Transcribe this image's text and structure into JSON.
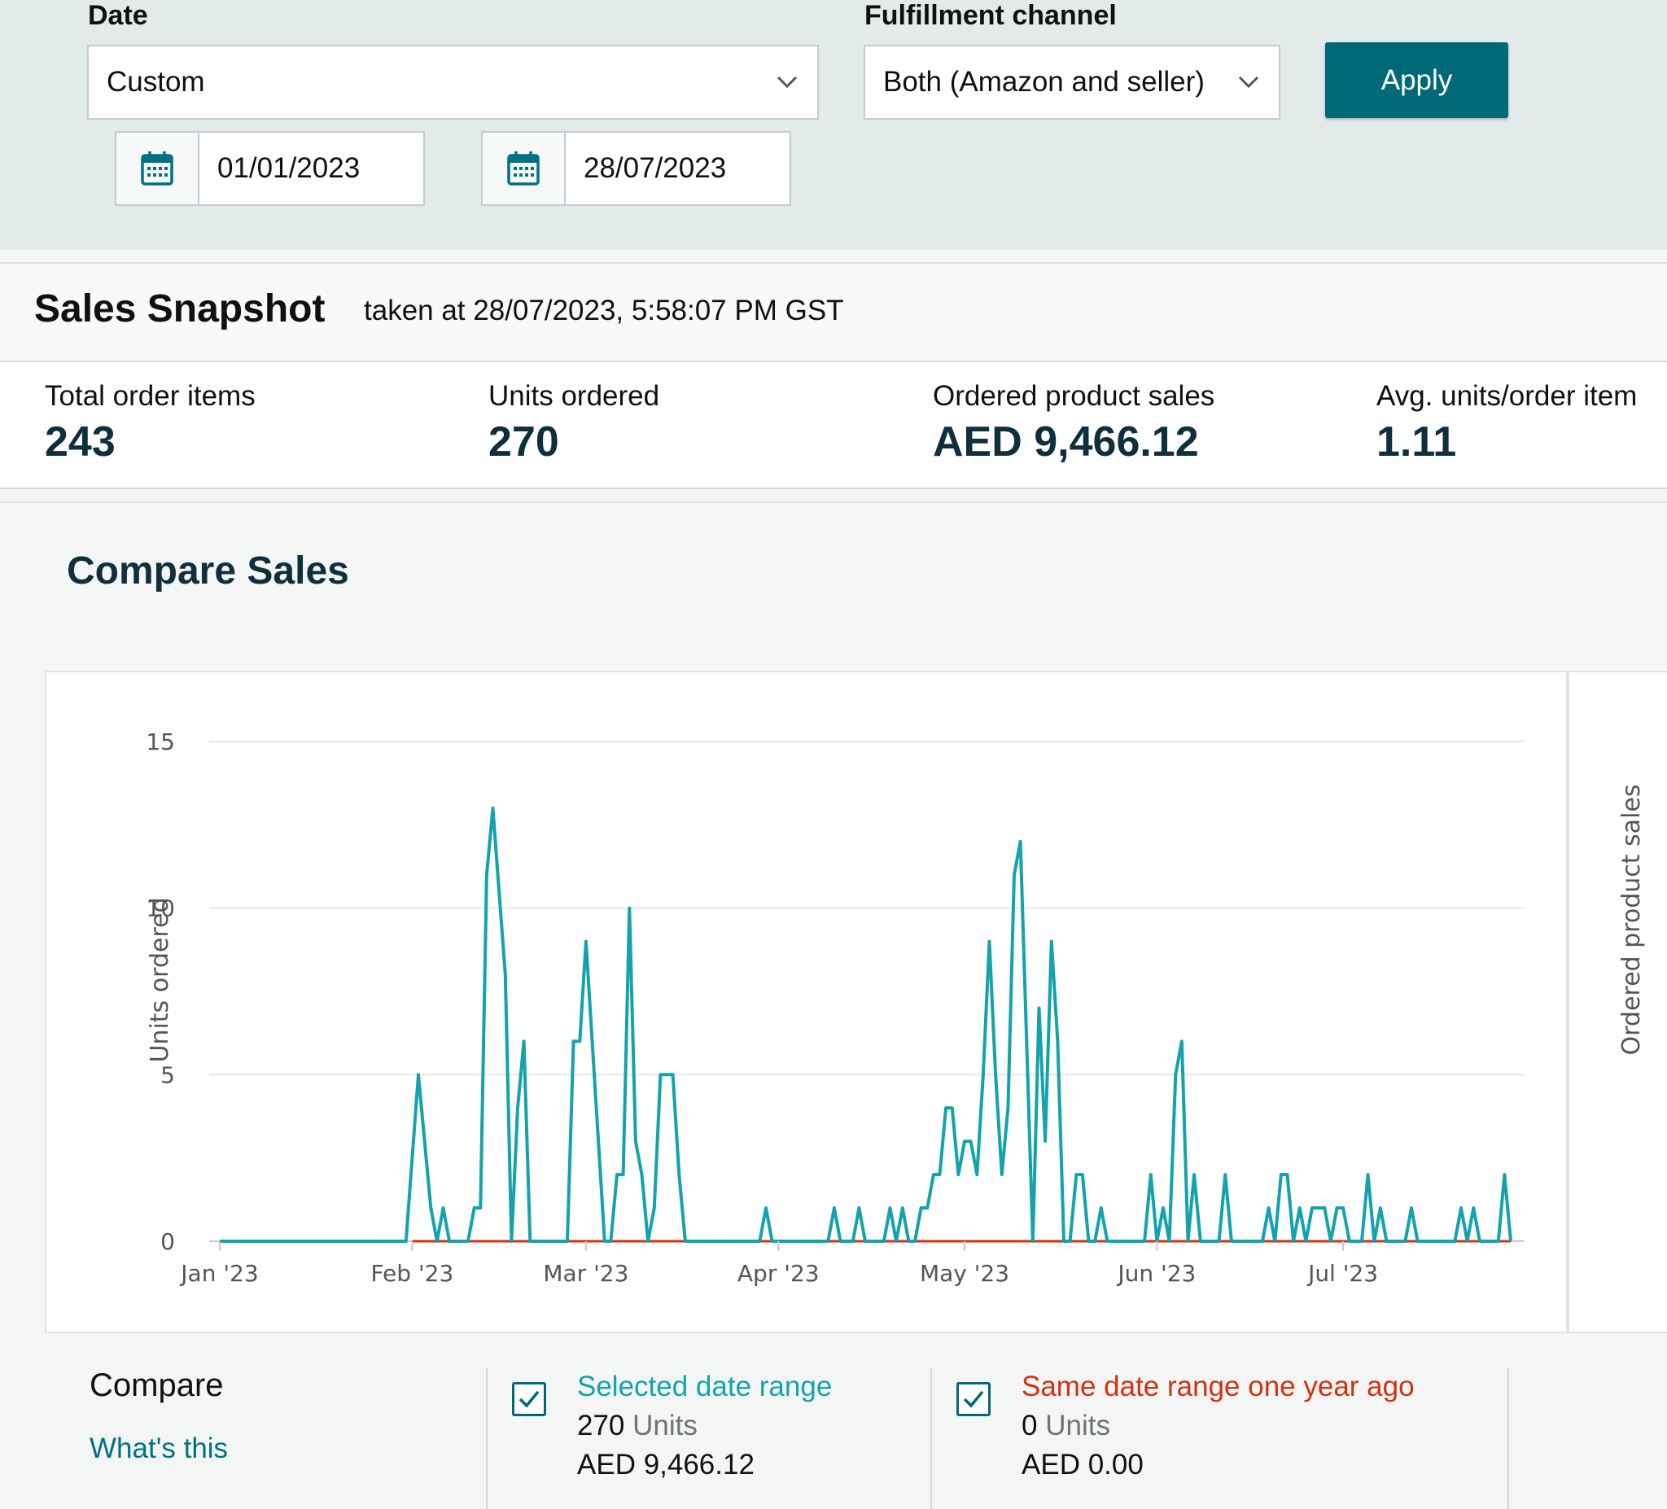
{
  "filters": {
    "date_label": "Date",
    "date_value": "Custom",
    "start_date": "01/01/2023",
    "end_date": "28/07/2023",
    "channel_label": "Fulfillment channel",
    "channel_value": "Both (Amazon and seller)",
    "apply_label": "Apply"
  },
  "snapshot": {
    "title": "Sales Snapshot",
    "taken_at": "taken at 28/07/2023, 5:58:07 PM GST",
    "metrics": [
      {
        "label": "Total order items",
        "value": "243"
      },
      {
        "label": "Units ordered",
        "value": "270"
      },
      {
        "label": "Ordered product sales",
        "value": "AED 9,466.12"
      },
      {
        "label": "Avg. units/order item",
        "value": "1.11"
      }
    ]
  },
  "compare_sales": {
    "title": "Compare Sales"
  },
  "colors": {
    "selected": "#14a3ad",
    "previous": "#d13212",
    "accent": "#006978",
    "link": "#007185"
  },
  "chart_data": {
    "type": "line",
    "y_axis_title": "Units ordered",
    "y2_axis_title": "Ordered product sales",
    "yticks": [
      0,
      5,
      10,
      15
    ],
    "ylim": [
      0,
      15
    ],
    "xlim": [
      "2023-01-01",
      "2023-07-28"
    ],
    "xticks": [
      {
        "date": "2023-01-01",
        "label": "Jan '23"
      },
      {
        "date": "2023-02-01",
        "label": "Feb '23"
      },
      {
        "date": "2023-03-01",
        "label": "Mar '23"
      },
      {
        "date": "2023-04-01",
        "label": "Apr '23"
      },
      {
        "date": "2023-05-01",
        "label": "May '23"
      },
      {
        "date": "2023-06-01",
        "label": "Jun '23"
      },
      {
        "date": "2023-07-01",
        "label": "Jul '23"
      }
    ],
    "grid": true,
    "series": [
      {
        "name": "Selected date range",
        "points": [
          [
            "2023-01-01",
            0
          ],
          [
            "2023-01-31",
            0
          ],
          [
            "2023-02-02",
            5
          ],
          [
            "2023-02-04",
            1
          ],
          [
            "2023-02-05",
            0
          ],
          [
            "2023-02-06",
            1
          ],
          [
            "2023-02-07",
            0
          ],
          [
            "2023-02-10",
            0
          ],
          [
            "2023-02-11",
            1
          ],
          [
            "2023-02-12",
            1
          ],
          [
            "2023-02-13",
            11
          ],
          [
            "2023-02-14",
            13
          ],
          [
            "2023-02-16",
            8
          ],
          [
            "2023-02-17",
            0
          ],
          [
            "2023-02-18",
            4
          ],
          [
            "2023-02-19",
            6
          ],
          [
            "2023-02-20",
            0
          ],
          [
            "2023-02-26",
            0
          ],
          [
            "2023-02-27",
            6
          ],
          [
            "2023-02-28",
            6
          ],
          [
            "2023-03-01",
            9
          ],
          [
            "2023-03-04",
            0
          ],
          [
            "2023-03-05",
            0
          ],
          [
            "2023-03-06",
            2
          ],
          [
            "2023-03-07",
            2
          ],
          [
            "2023-03-08",
            10
          ],
          [
            "2023-03-09",
            3
          ],
          [
            "2023-03-10",
            2
          ],
          [
            "2023-03-11",
            0
          ],
          [
            "2023-03-12",
            1
          ],
          [
            "2023-03-13",
            5
          ],
          [
            "2023-03-15",
            5
          ],
          [
            "2023-03-16",
            2
          ],
          [
            "2023-03-17",
            0
          ],
          [
            "2023-03-29",
            0
          ],
          [
            "2023-03-30",
            1
          ],
          [
            "2023-03-31",
            0
          ],
          [
            "2023-04-09",
            0
          ],
          [
            "2023-04-10",
            1
          ],
          [
            "2023-04-11",
            0
          ],
          [
            "2023-04-13",
            0
          ],
          [
            "2023-04-14",
            1
          ],
          [
            "2023-04-15",
            0
          ],
          [
            "2023-04-18",
            0
          ],
          [
            "2023-04-19",
            1
          ],
          [
            "2023-04-20",
            0
          ],
          [
            "2023-04-21",
            1
          ],
          [
            "2023-04-22",
            0
          ],
          [
            "2023-04-23",
            0
          ],
          [
            "2023-04-24",
            1
          ],
          [
            "2023-04-25",
            1
          ],
          [
            "2023-04-26",
            2
          ],
          [
            "2023-04-27",
            2
          ],
          [
            "2023-04-28",
            4
          ],
          [
            "2023-04-29",
            4
          ],
          [
            "2023-04-30",
            2
          ],
          [
            "2023-05-01",
            3
          ],
          [
            "2023-05-02",
            3
          ],
          [
            "2023-05-03",
            2
          ],
          [
            "2023-05-04",
            5
          ],
          [
            "2023-05-05",
            9
          ],
          [
            "2023-05-06",
            5
          ],
          [
            "2023-05-07",
            2
          ],
          [
            "2023-05-08",
            4
          ],
          [
            "2023-05-09",
            11
          ],
          [
            "2023-05-10",
            12
          ],
          [
            "2023-05-12",
            0
          ],
          [
            "2023-05-13",
            7
          ],
          [
            "2023-05-14",
            3
          ],
          [
            "2023-05-15",
            9
          ],
          [
            "2023-05-16",
            6
          ],
          [
            "2023-05-17",
            0
          ],
          [
            "2023-05-18",
            0
          ],
          [
            "2023-05-19",
            2
          ],
          [
            "2023-05-20",
            2
          ],
          [
            "2023-05-21",
            0
          ],
          [
            "2023-05-22",
            0
          ],
          [
            "2023-05-23",
            1
          ],
          [
            "2023-05-24",
            0
          ],
          [
            "2023-05-30",
            0
          ],
          [
            "2023-05-31",
            2
          ],
          [
            "2023-06-01",
            0
          ],
          [
            "2023-06-02",
            1
          ],
          [
            "2023-06-03",
            0
          ],
          [
            "2023-06-04",
            5
          ],
          [
            "2023-06-05",
            6
          ],
          [
            "2023-06-06",
            0
          ],
          [
            "2023-06-07",
            2
          ],
          [
            "2023-06-08",
            0
          ],
          [
            "2023-06-11",
            0
          ],
          [
            "2023-06-12",
            2
          ],
          [
            "2023-06-13",
            0
          ],
          [
            "2023-06-18",
            0
          ],
          [
            "2023-06-19",
            1
          ],
          [
            "2023-06-20",
            0
          ],
          [
            "2023-06-21",
            2
          ],
          [
            "2023-06-22",
            2
          ],
          [
            "2023-06-23",
            0
          ],
          [
            "2023-06-24",
            1
          ],
          [
            "2023-06-25",
            0
          ],
          [
            "2023-06-26",
            1
          ],
          [
            "2023-06-28",
            1
          ],
          [
            "2023-06-29",
            0
          ],
          [
            "2023-06-30",
            1
          ],
          [
            "2023-07-01",
            1
          ],
          [
            "2023-07-02",
            0
          ],
          [
            "2023-07-04",
            0
          ],
          [
            "2023-07-05",
            2
          ],
          [
            "2023-07-06",
            0
          ],
          [
            "2023-07-07",
            1
          ],
          [
            "2023-07-08",
            0
          ],
          [
            "2023-07-11",
            0
          ],
          [
            "2023-07-12",
            1
          ],
          [
            "2023-07-13",
            0
          ],
          [
            "2023-07-19",
            0
          ],
          [
            "2023-07-20",
            1
          ],
          [
            "2023-07-21",
            0
          ],
          [
            "2023-07-22",
            1
          ],
          [
            "2023-07-23",
            0
          ],
          [
            "2023-07-26",
            0
          ],
          [
            "2023-07-27",
            2
          ],
          [
            "2023-07-28",
            0
          ]
        ]
      },
      {
        "name": "Same date range one year ago",
        "points": [
          [
            "2023-02-01",
            0
          ],
          [
            "2023-07-28",
            0
          ]
        ]
      }
    ]
  },
  "compare_legend": {
    "label": "Compare",
    "whats_this": "What's this",
    "selected": {
      "title": "Selected date range",
      "units_value": "270",
      "units_word": "Units",
      "amount": "AED 9,466.12"
    },
    "previous": {
      "title": "Same date range one year ago",
      "units_value": "0",
      "units_word": "Units",
      "amount": "AED 0.00"
    }
  }
}
